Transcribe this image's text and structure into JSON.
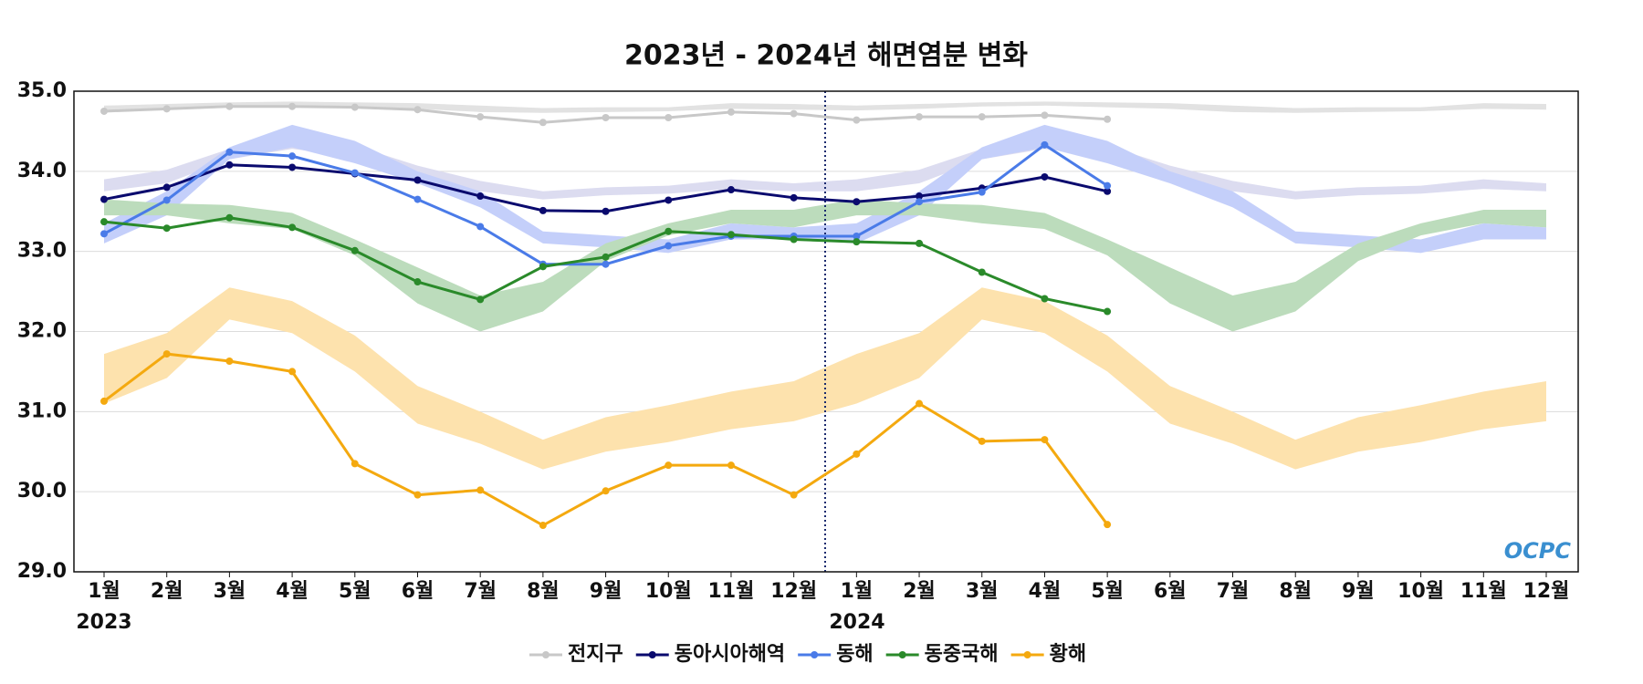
{
  "chart_data": {
    "type": "line",
    "title": "2023년 - 2024년 해면염분 변화",
    "categories": [
      "1월",
      "2월",
      "3월",
      "4월",
      "5월",
      "6월",
      "7월",
      "8월",
      "9월",
      "10월",
      "11월",
      "12월",
      "1월",
      "2월",
      "3월",
      "4월",
      "5월",
      "6월",
      "7월",
      "8월",
      "9월",
      "10월",
      "11월",
      "12월"
    ],
    "year_labels": [
      "2023",
      "2024"
    ],
    "logo": "OCPC",
    "ylim": [
      29,
      35
    ],
    "yticks": [
      {
        "value": 29,
        "label": "29.0"
      },
      {
        "value": 30,
        "label": "30.0"
      },
      {
        "value": 31,
        "label": "31.0"
      },
      {
        "value": 32,
        "label": "32.0"
      },
      {
        "value": 33,
        "label": "33.0"
      },
      {
        "value": 34,
        "label": "34.0"
      },
      {
        "value": 35,
        "label": "35.0"
      }
    ],
    "grid": true,
    "legend": "bottom",
    "bands": [
      {
        "color": "#e2e2e2",
        "lower": [
          34.76,
          34.78,
          34.81,
          34.82,
          34.8,
          34.78,
          34.74,
          34.73,
          34.74,
          34.75,
          34.78,
          34.77
        ],
        "upper": [
          34.82,
          34.84,
          34.86,
          34.87,
          34.86,
          34.85,
          34.82,
          34.79,
          34.8,
          34.8,
          34.85,
          34.84
        ]
      },
      {
        "color": "#dcdcf0",
        "lower": [
          33.75,
          33.85,
          34.15,
          34.28,
          34.18,
          33.95,
          33.75,
          33.65,
          33.7,
          33.72,
          33.78,
          33.75
        ],
        "upper": [
          33.9,
          34.02,
          34.28,
          34.4,
          34.32,
          34.07,
          33.88,
          33.75,
          33.8,
          33.82,
          33.9,
          33.85
        ]
      },
      {
        "color": "#c4cffa",
        "lower": [
          33.1,
          33.45,
          34.15,
          34.3,
          34.1,
          33.85,
          33.55,
          33.1,
          33.05,
          32.98,
          33.15,
          33.15
        ],
        "upper": [
          33.35,
          33.75,
          34.3,
          34.58,
          34.38,
          34.0,
          33.75,
          33.25,
          33.2,
          33.15,
          33.35,
          33.3
        ]
      },
      {
        "color": "#bcdcbc",
        "lower": [
          33.45,
          33.45,
          33.35,
          33.28,
          32.95,
          32.35,
          32.0,
          32.25,
          32.88,
          33.2,
          33.35,
          33.3
        ],
        "upper": [
          33.65,
          33.6,
          33.58,
          33.48,
          33.15,
          32.8,
          32.45,
          32.62,
          33.1,
          33.35,
          33.52,
          33.52
        ]
      },
      {
        "color": "#fde2ad",
        "lower": [
          31.1,
          31.42,
          32.15,
          31.98,
          31.5,
          30.85,
          30.6,
          30.28,
          30.5,
          30.62,
          30.78,
          30.88
        ],
        "upper": [
          31.72,
          31.98,
          32.55,
          32.38,
          31.95,
          31.32,
          31.0,
          30.65,
          30.93,
          31.08,
          31.25,
          31.38
        ]
      }
    ],
    "series": [
      {
        "name": "전지구",
        "color": "#c8c8c8",
        "values": [
          34.75,
          34.78,
          34.81,
          34.81,
          34.8,
          34.77,
          34.68,
          34.61,
          34.67,
          34.67,
          34.74,
          34.72,
          34.64,
          34.68,
          34.68,
          34.7,
          34.65,
          null,
          null,
          null,
          null,
          null,
          null,
          null
        ]
      },
      {
        "name": "동아시아해역",
        "color": "#0a0a6e",
        "values": [
          33.65,
          33.8,
          34.08,
          34.05,
          33.97,
          33.89,
          33.69,
          33.51,
          33.5,
          33.64,
          33.77,
          33.67,
          33.62,
          33.69,
          33.79,
          33.93,
          33.75,
          null,
          null,
          null,
          null,
          null,
          null,
          null
        ]
      },
      {
        "name": "동해",
        "color": "#4a7be8",
        "values": [
          33.22,
          33.64,
          34.24,
          34.19,
          33.98,
          33.65,
          33.31,
          32.84,
          32.84,
          33.07,
          33.19,
          33.19,
          33.19,
          33.62,
          33.74,
          34.33,
          33.82,
          null,
          null,
          null,
          null,
          null,
          null,
          null
        ]
      },
      {
        "name": "동중국해",
        "color": "#2a8a2a",
        "values": [
          33.37,
          33.29,
          33.42,
          33.3,
          33.01,
          32.62,
          32.4,
          32.81,
          32.93,
          33.25,
          33.21,
          33.15,
          33.12,
          33.1,
          32.74,
          32.41,
          32.25,
          null,
          null,
          null,
          null,
          null,
          null,
          null
        ]
      },
      {
        "name": "황해",
        "color": "#f4a90f",
        "values": [
          31.13,
          31.72,
          31.63,
          31.5,
          30.35,
          29.96,
          30.02,
          29.58,
          30.01,
          30.33,
          30.33,
          29.96,
          30.47,
          31.1,
          30.63,
          30.65,
          29.59,
          null,
          null,
          null,
          null,
          null,
          null,
          null
        ]
      }
    ]
  }
}
